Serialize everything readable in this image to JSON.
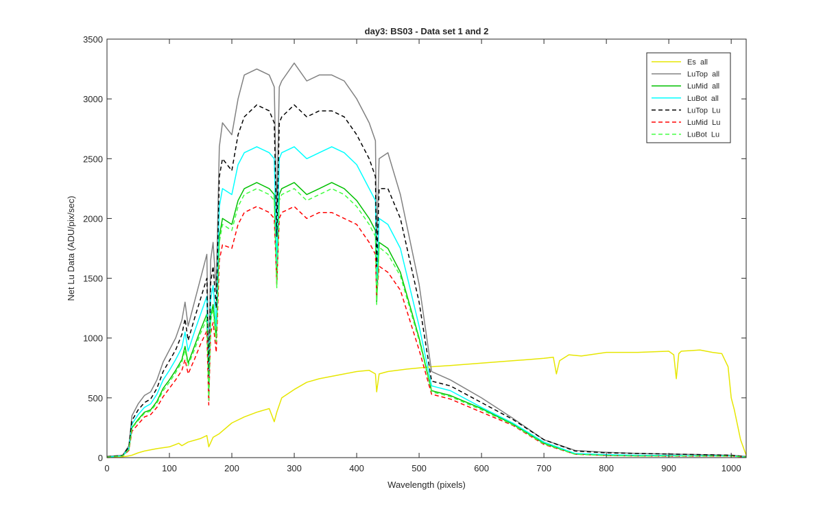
{
  "chart_data": {
    "type": "line",
    "title": "day3: BS03 - Data set 1 and 2",
    "xlabel": "Wavelength (pixels)",
    "ylabel": "Net Lu Data (ADU/pix/sec)",
    "xlim": [
      0,
      1024
    ],
    "ylim": [
      0,
      3500
    ],
    "xticks": [
      0,
      100,
      200,
      300,
      400,
      500,
      600,
      700,
      800,
      900,
      1000
    ],
    "yticks": [
      0,
      500,
      1000,
      1500,
      2000,
      2500,
      3000,
      3500
    ],
    "grid": false,
    "legend_position": "top-right",
    "series": [
      {
        "name": "Es  all",
        "color": "#e6e600",
        "dash": "solid",
        "x": [
          0,
          20,
          30,
          40,
          50,
          60,
          80,
          100,
          115,
          120,
          130,
          150,
          160,
          163,
          170,
          180,
          200,
          220,
          240,
          260,
          268,
          272,
          280,
          300,
          320,
          340,
          360,
          380,
          400,
          420,
          430,
          432,
          436,
          450,
          480,
          500,
          520,
          550,
          600,
          650,
          700,
          715,
          720,
          725,
          740,
          760,
          800,
          850,
          900,
          908,
          912,
          916,
          920,
          950,
          970,
          985,
          995,
          1000,
          1005,
          1015,
          1024
        ],
        "y": [
          0,
          5,
          10,
          20,
          40,
          55,
          75,
          90,
          120,
          100,
          130,
          160,
          185,
          90,
          170,
          200,
          290,
          340,
          380,
          410,
          300,
          380,
          500,
          570,
          630,
          660,
          680,
          700,
          720,
          730,
          700,
          550,
          700,
          720,
          740,
          750,
          760,
          770,
          790,
          810,
          830,
          840,
          700,
          810,
          860,
          850,
          880,
          880,
          890,
          860,
          660,
          870,
          890,
          900,
          880,
          870,
          760,
          500,
          400,
          150,
          20
        ]
      },
      {
        "name": "LuTop  all",
        "color": "#808080",
        "dash": "solid",
        "x": [
          0,
          25,
          35,
          40,
          50,
          60,
          70,
          80,
          90,
          100,
          110,
          120,
          125,
          130,
          140,
          150,
          160,
          163,
          166,
          170,
          175,
          180,
          185,
          200,
          210,
          220,
          240,
          260,
          268,
          272,
          276,
          280,
          300,
          320,
          340,
          360,
          380,
          400,
          420,
          430,
          432,
          436,
          450,
          470,
          500,
          520,
          550,
          600,
          650,
          700,
          750,
          800,
          850,
          900,
          950,
          1000,
          1024
        ],
        "y": [
          10,
          20,
          100,
          350,
          450,
          520,
          550,
          650,
          800,
          900,
          1000,
          1150,
          1300,
          1100,
          1300,
          1500,
          1700,
          700,
          1650,
          1800,
          1400,
          2600,
          2800,
          2700,
          3000,
          3200,
          3250,
          3200,
          3100,
          2050,
          3100,
          3150,
          3300,
          3150,
          3200,
          3200,
          3150,
          3000,
          2800,
          2650,
          1800,
          2500,
          2550,
          2200,
          1450,
          720,
          650,
          500,
          330,
          150,
          60,
          45,
          35,
          30,
          25,
          20,
          10
        ]
      },
      {
        "name": "LuMid  all",
        "color": "#00c000",
        "dash": "solid",
        "x": [
          0,
          25,
          35,
          40,
          50,
          60,
          70,
          80,
          90,
          100,
          110,
          120,
          125,
          130,
          140,
          150,
          160,
          163,
          166,
          170,
          175,
          180,
          185,
          200,
          210,
          220,
          240,
          260,
          268,
          272,
          276,
          280,
          300,
          320,
          340,
          360,
          380,
          400,
          420,
          430,
          432,
          436,
          450,
          470,
          500,
          520,
          550,
          600,
          650,
          700,
          750,
          800,
          850,
          900,
          950,
          1000,
          1024
        ],
        "y": [
          5,
          15,
          70,
          250,
          320,
          380,
          400,
          470,
          580,
          650,
          730,
          820,
          930,
          790,
          930,
          1070,
          1200,
          500,
          1180,
          1280,
          1000,
          1850,
          2000,
          1950,
          2150,
          2250,
          2300,
          2250,
          2200,
          1450,
          2200,
          2250,
          2300,
          2200,
          2250,
          2300,
          2250,
          2150,
          2000,
          1900,
          1300,
          1800,
          1750,
          1550,
          1000,
          560,
          520,
          410,
          280,
          120,
          30,
          20,
          15,
          15,
          15,
          15,
          5
        ]
      },
      {
        "name": "LuBot  all",
        "color": "#00ffff",
        "dash": "solid",
        "x": [
          0,
          25,
          35,
          40,
          50,
          60,
          70,
          80,
          90,
          100,
          110,
          120,
          125,
          130,
          140,
          150,
          160,
          163,
          166,
          170,
          175,
          180,
          185,
          200,
          210,
          220,
          240,
          260,
          268,
          272,
          276,
          280,
          300,
          320,
          340,
          360,
          380,
          400,
          420,
          430,
          432,
          436,
          450,
          470,
          500,
          520,
          550,
          600,
          650,
          700,
          750,
          800,
          850,
          900,
          950,
          1000,
          1024
        ],
        "y": [
          5,
          15,
          80,
          280,
          360,
          420,
          450,
          530,
          650,
          730,
          820,
          920,
          1050,
          890,
          1050,
          1200,
          1350,
          550,
          1320,
          1440,
          1100,
          2100,
          2250,
          2200,
          2450,
          2550,
          2600,
          2550,
          2500,
          1600,
          2500,
          2550,
          2600,
          2500,
          2550,
          2600,
          2550,
          2450,
          2250,
          2150,
          1450,
          2000,
          1950,
          1750,
          1100,
          600,
          560,
          420,
          290,
          130,
          35,
          25,
          20,
          18,
          15,
          15,
          5
        ]
      },
      {
        "name": "LuTop  Lu",
        "color": "#000000",
        "dash": "dashed",
        "x": [
          0,
          25,
          35,
          40,
          50,
          60,
          70,
          80,
          90,
          100,
          110,
          120,
          125,
          130,
          140,
          150,
          160,
          163,
          166,
          170,
          175,
          180,
          185,
          200,
          210,
          220,
          240,
          260,
          268,
          272,
          276,
          280,
          300,
          320,
          340,
          360,
          380,
          400,
          420,
          430,
          432,
          436,
          450,
          470,
          500,
          520,
          550,
          600,
          650,
          700,
          750,
          800,
          850,
          900,
          950,
          1000,
          1024
        ],
        "y": [
          8,
          18,
          90,
          310,
          400,
          460,
          490,
          580,
          720,
          810,
          900,
          1030,
          1160,
          980,
          1160,
          1330,
          1500,
          620,
          1460,
          1600,
          1250,
          2350,
          2500,
          2400,
          2700,
          2850,
          2950,
          2900,
          2800,
          1850,
          2800,
          2850,
          2950,
          2850,
          2900,
          2900,
          2850,
          2700,
          2500,
          2350,
          1600,
          2250,
          2250,
          2000,
          1300,
          640,
          600,
          460,
          320,
          150,
          55,
          40,
          35,
          30,
          25,
          20,
          8
        ]
      },
      {
        "name": "LuMid  Lu",
        "color": "#ff0000",
        "dash": "dashed",
        "x": [
          0,
          25,
          35,
          40,
          50,
          60,
          70,
          80,
          90,
          100,
          110,
          120,
          125,
          130,
          140,
          150,
          160,
          163,
          166,
          170,
          175,
          180,
          185,
          200,
          210,
          220,
          240,
          260,
          268,
          272,
          276,
          280,
          300,
          320,
          340,
          360,
          380,
          400,
          420,
          430,
          432,
          436,
          450,
          470,
          500,
          520,
          550,
          600,
          650,
          700,
          750,
          800,
          850,
          900,
          950,
          1000,
          1024
        ],
        "y": [
          5,
          12,
          60,
          220,
          280,
          340,
          360,
          420,
          510,
          580,
          650,
          730,
          820,
          700,
          820,
          950,
          1060,
          440,
          1040,
          1130,
          880,
          1650,
          1780,
          1750,
          1950,
          2050,
          2100,
          2050,
          2000,
          1450,
          2000,
          2050,
          2100,
          2000,
          2050,
          2050,
          2000,
          1950,
          1800,
          1700,
          1350,
          1600,
          1550,
          1400,
          900,
          530,
          490,
          380,
          270,
          110,
          28,
          18,
          14,
          12,
          12,
          12,
          5
        ]
      },
      {
        "name": "LuBot  Lu",
        "color": "#40ff40",
        "dash": "dashed",
        "x": [
          0,
          25,
          35,
          40,
          50,
          60,
          70,
          80,
          90,
          100,
          110,
          120,
          125,
          130,
          140,
          150,
          160,
          163,
          166,
          170,
          175,
          180,
          185,
          200,
          210,
          220,
          240,
          260,
          268,
          272,
          276,
          280,
          300,
          320,
          340,
          360,
          380,
          400,
          420,
          430,
          432,
          436,
          450,
          470,
          500,
          520,
          550,
          600,
          650,
          700,
          750,
          800,
          850,
          900,
          950,
          1000,
          1024
        ],
        "y": [
          5,
          14,
          68,
          245,
          310,
          370,
          390,
          455,
          560,
          630,
          710,
          800,
          900,
          770,
          900,
          1040,
          1160,
          480,
          1140,
          1240,
          970,
          1800,
          1950,
          1900,
          2100,
          2200,
          2250,
          2200,
          2150,
          1420,
          2150,
          2200,
          2250,
          2150,
          2200,
          2250,
          2200,
          2100,
          1950,
          1850,
          1280,
          1760,
          1700,
          1520,
          980,
          550,
          510,
          400,
          275,
          115,
          28,
          18,
          14,
          14,
          14,
          14,
          5
        ]
      }
    ]
  }
}
